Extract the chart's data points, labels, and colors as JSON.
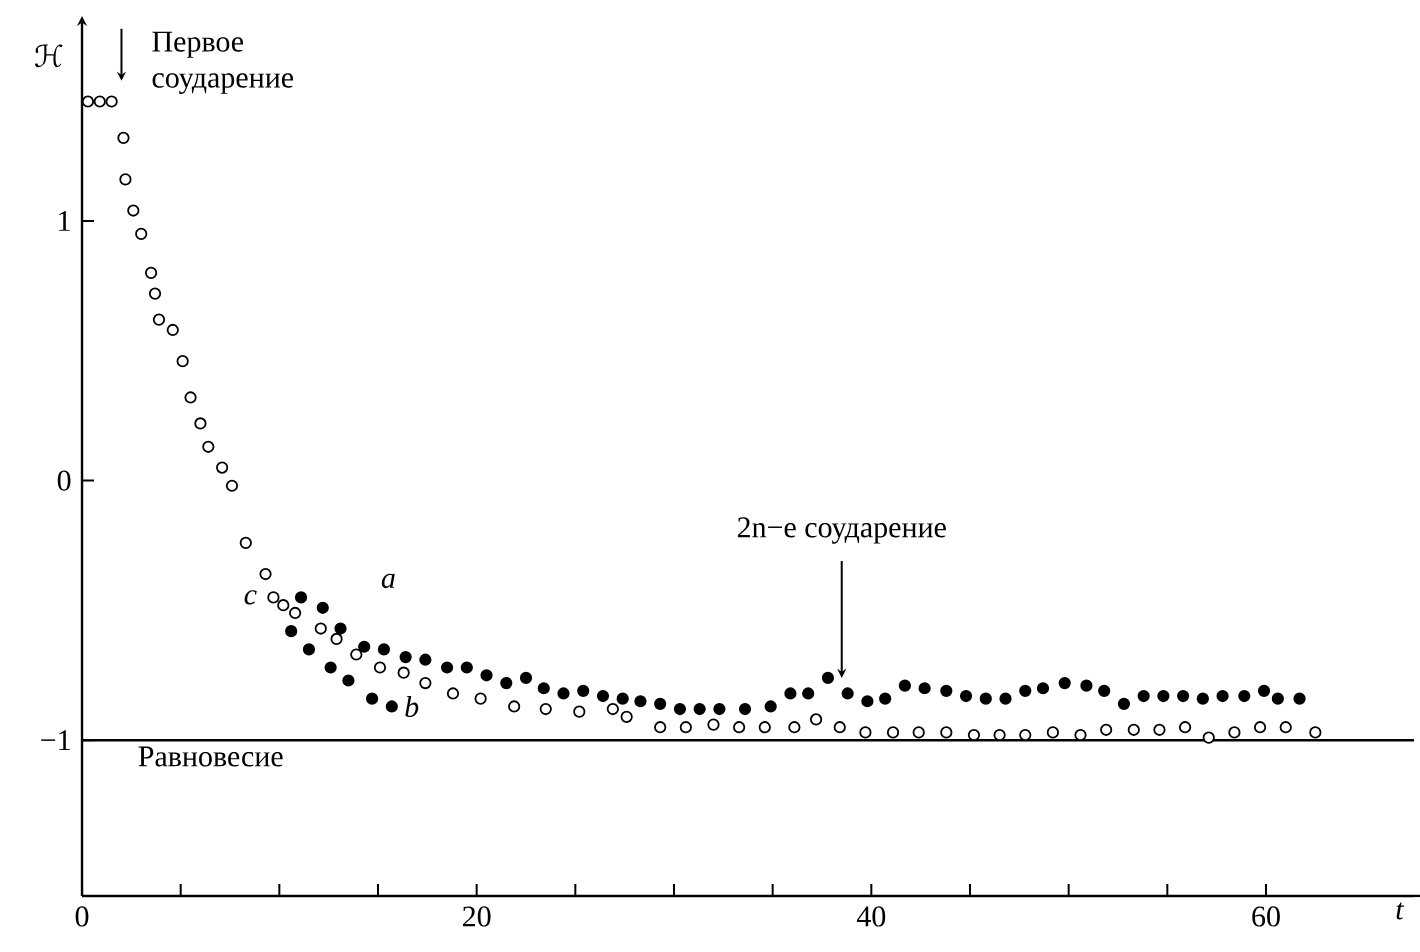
{
  "chart_data": {
    "type": "scatter",
    "xlabel": "t",
    "ylabel": "ℋ",
    "xlim": [
      0,
      67.5
    ],
    "ylim": [
      -1.6,
      1.72
    ],
    "xticks": [
      0,
      {
        "value": 5,
        "label": null
      },
      {
        "value": 10,
        "label": null
      },
      {
        "value": 15,
        "label": null
      },
      20,
      {
        "value": 25,
        "label": null
      },
      {
        "value": 30,
        "label": null
      },
      {
        "value": 35,
        "label": null
      },
      40,
      {
        "value": 45,
        "label": null
      },
      {
        "value": 50,
        "label": null
      },
      {
        "value": 55,
        "label": null
      },
      60
    ],
    "yticks": [
      1,
      0,
      {
        "value": -1,
        "label": "−1"
      }
    ],
    "marker": "circle",
    "series": [
      {
        "name": "c",
        "color": "#000000",
        "x": [
          0.3,
          0.9,
          1.5,
          2.1,
          2.2,
          2.6,
          3.0,
          3.5,
          3.7,
          3.9,
          4.6,
          5.1,
          5.5,
          6.0,
          6.4,
          7.1,
          7.6,
          8.3,
          9.3,
          9.7,
          10.2,
          10.8,
          12.1,
          12.9,
          13.9,
          15.1,
          16.3,
          17.4,
          18.8,
          20.2,
          21.9,
          23.5,
          25.2,
          26.9,
          27.6,
          29.3,
          30.6,
          32.0,
          33.3,
          34.6,
          36.1,
          37.2,
          38.4,
          39.7,
          41.1,
          42.4,
          43.8,
          45.2,
          46.5,
          47.8,
          49.2,
          50.6,
          51.9,
          53.3,
          54.6,
          55.9,
          57.1,
          58.4,
          59.7,
          61.0,
          62.5
        ],
        "values": [
          1.46,
          1.46,
          1.46,
          1.32,
          1.16,
          1.04,
          0.95,
          0.8,
          0.72,
          0.62,
          0.58,
          0.46,
          0.32,
          0.22,
          0.13,
          0.05,
          -0.02,
          -0.24,
          -0.36,
          -0.45,
          -0.48,
          -0.51,
          -0.57,
          -0.61,
          -0.67,
          -0.72,
          -0.74,
          -0.78,
          -0.82,
          -0.84,
          -0.87,
          -0.88,
          -0.89,
          -0.88,
          -0.91,
          -0.95,
          -0.95,
          -0.94,
          -0.95,
          -0.95,
          -0.95,
          -0.92,
          -0.95,
          -0.97,
          -0.97,
          -0.97,
          -0.97,
          -0.98,
          -0.98,
          -0.98,
          -0.97,
          -0.98,
          -0.96,
          -0.96,
          -0.96,
          -0.95,
          -0.99,
          -0.97,
          -0.95,
          -0.95,
          -0.97
        ]
      },
      {
        "name": "a",
        "color": "#000000",
        "x": [
          11.1,
          12.2,
          13.1,
          14.3,
          15.3,
          16.4,
          17.4,
          18.5,
          19.5,
          20.5,
          21.5,
          22.5,
          23.4,
          24.4,
          25.4,
          26.4,
          27.4,
          28.3,
          29.3,
          30.3,
          31.3,
          32.3,
          33.6,
          34.9,
          35.9,
          36.8,
          37.8,
          38.8,
          39.8,
          40.7,
          41.7,
          42.7,
          43.8,
          44.8,
          45.8,
          46.8,
          47.8,
          48.7,
          49.8,
          50.9,
          51.8,
          52.8,
          53.8,
          54.8,
          55.8,
          56.8,
          57.8,
          58.9,
          59.9,
          60.6,
          61.7
        ],
        "values": [
          -0.45,
          -0.49,
          -0.57,
          -0.64,
          -0.65,
          -0.68,
          -0.69,
          -0.72,
          -0.72,
          -0.75,
          -0.78,
          -0.76,
          -0.8,
          -0.82,
          -0.81,
          -0.83,
          -0.84,
          -0.85,
          -0.86,
          -0.88,
          -0.88,
          -0.88,
          -0.88,
          -0.87,
          -0.82,
          -0.82,
          -0.76,
          -0.82,
          -0.85,
          -0.84,
          -0.79,
          -0.8,
          -0.81,
          -0.83,
          -0.84,
          -0.84,
          -0.81,
          -0.8,
          -0.78,
          -0.79,
          -0.81,
          -0.86,
          -0.83,
          -0.83,
          -0.83,
          -0.84,
          -0.83,
          -0.83,
          -0.81,
          -0.84,
          -0.84
        ]
      },
      {
        "name": "b",
        "color": "#000000",
        "x": [
          10.6,
          11.5,
          12.6,
          13.5,
          14.7,
          15.7
        ],
        "values": [
          -0.58,
          -0.65,
          -0.72,
          -0.77,
          -0.84,
          -0.87
        ]
      }
    ],
    "ref_lines": [
      {
        "axis": "y",
        "value": -1,
        "label": "Равновесие",
        "color": "#000000"
      }
    ],
    "annotations": [
      {
        "text": "Первое соударение",
        "x": 2,
        "y": 1.46
      },
      {
        "text": "2n−e соударение",
        "x": 38.5,
        "y": -0.76
      }
    ]
  }
}
